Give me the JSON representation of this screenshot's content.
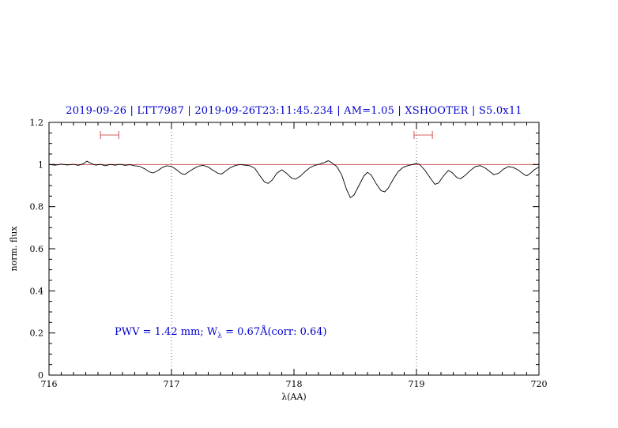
{
  "title": "2019-09-26 | LTT7987 | 2019-09-26T23:11:45.234 | AM=1.05 | XSHOOTER | S5.0x11",
  "colors": {
    "title": "#0000cc",
    "annotation": "#0000cc",
    "spectrum": "#000000",
    "continuum": "#c84040",
    "marker": "#d96060",
    "vline": "#444444",
    "frame": "#000000"
  },
  "chart_data": {
    "type": "line",
    "title": "2019-09-26 | LTT7987 | 2019-09-26T23:11:45.234 | AM=1.05 | XSHOOTER | S5.0x11",
    "xlabel": "λ(AA)",
    "ylabel": "norm. flux",
    "xlim": [
      716,
      720
    ],
    "ylim": [
      0,
      1.2
    ],
    "x_ticks": [
      716,
      717,
      718,
      719,
      720
    ],
    "x_tick_labels": [
      "716",
      "717",
      "718",
      "719",
      "720"
    ],
    "y_ticks": [
      0,
      0.2,
      0.4,
      0.6,
      0.8,
      1,
      1.2
    ],
    "y_tick_labels": [
      "0",
      "0.2",
      "0.4",
      "0.6",
      "0.8",
      "1",
      "1.2"
    ],
    "x_minor_step": 0.1,
    "y_minor_step": 0.05,
    "grid": false,
    "legend": "none",
    "vlines": [
      717,
      719
    ],
    "continuum_y": 1.0,
    "range_markers": [
      {
        "x1": 716.42,
        "x2": 716.57,
        "y": 1.14
      },
      {
        "x1": 718.98,
        "x2": 719.13,
        "y": 1.14
      }
    ],
    "annotation": {
      "pre": "PWV = 1.42 mm; W",
      "sub": "λ",
      "post": " = 0.67Å(corr: 0.64)",
      "x": 716.55,
      "y": 0.2
    },
    "series": [
      {
        "name": "normalized-spectrum",
        "points": [
          [
            716.0,
            1.0
          ],
          [
            716.05,
            0.997
          ],
          [
            716.1,
            1.002
          ],
          [
            716.15,
            0.998
          ],
          [
            716.2,
            1.001
          ],
          [
            716.24,
            0.996
          ],
          [
            716.28,
            1.004
          ],
          [
            716.31,
            1.016
          ],
          [
            716.34,
            1.006
          ],
          [
            716.38,
            0.997
          ],
          [
            716.42,
            1.001
          ],
          [
            716.46,
            0.994
          ],
          [
            716.5,
            1.0
          ],
          [
            716.54,
            0.997
          ],
          [
            716.58,
            1.001
          ],
          [
            716.62,
            0.996
          ],
          [
            716.66,
            0.999
          ],
          [
            716.7,
            0.994
          ],
          [
            716.74,
            0.991
          ],
          [
            716.78,
            0.98
          ],
          [
            716.82,
            0.965
          ],
          [
            716.85,
            0.96
          ],
          [
            716.88,
            0.968
          ],
          [
            716.92,
            0.984
          ],
          [
            716.96,
            0.994
          ],
          [
            717.0,
            0.991
          ],
          [
            717.04,
            0.976
          ],
          [
            717.08,
            0.957
          ],
          [
            717.11,
            0.953
          ],
          [
            717.14,
            0.965
          ],
          [
            717.18,
            0.98
          ],
          [
            717.22,
            0.992
          ],
          [
            717.26,
            0.996
          ],
          [
            717.3,
            0.988
          ],
          [
            717.34,
            0.972
          ],
          [
            717.38,
            0.958
          ],
          [
            717.41,
            0.955
          ],
          [
            717.44,
            0.968
          ],
          [
            717.48,
            0.985
          ],
          [
            717.52,
            0.995
          ],
          [
            717.56,
            1.0
          ],
          [
            717.6,
            0.997
          ],
          [
            717.64,
            0.994
          ],
          [
            717.68,
            0.982
          ],
          [
            717.72,
            0.948
          ],
          [
            717.76,
            0.917
          ],
          [
            717.79,
            0.91
          ],
          [
            717.82,
            0.925
          ],
          [
            717.86,
            0.958
          ],
          [
            717.9,
            0.975
          ],
          [
            717.94,
            0.958
          ],
          [
            717.98,
            0.936
          ],
          [
            718.01,
            0.93
          ],
          [
            718.05,
            0.944
          ],
          [
            718.09,
            0.966
          ],
          [
            718.13,
            0.985
          ],
          [
            718.17,
            0.996
          ],
          [
            718.21,
            1.002
          ],
          [
            718.25,
            1.01
          ],
          [
            718.28,
            1.018
          ],
          [
            718.31,
            1.008
          ],
          [
            718.35,
            0.99
          ],
          [
            718.39,
            0.95
          ],
          [
            718.43,
            0.88
          ],
          [
            718.46,
            0.843
          ],
          [
            718.49,
            0.855
          ],
          [
            718.53,
            0.9
          ],
          [
            718.57,
            0.945
          ],
          [
            718.6,
            0.963
          ],
          [
            718.63,
            0.95
          ],
          [
            718.67,
            0.91
          ],
          [
            718.71,
            0.876
          ],
          [
            718.74,
            0.87
          ],
          [
            718.77,
            0.888
          ],
          [
            718.81,
            0.93
          ],
          [
            718.85,
            0.966
          ],
          [
            718.89,
            0.986
          ],
          [
            718.93,
            0.995
          ],
          [
            718.97,
            1.0
          ],
          [
            719.0,
            1.006
          ],
          [
            719.03,
            0.998
          ],
          [
            719.07,
            0.972
          ],
          [
            719.11,
            0.938
          ],
          [
            719.15,
            0.906
          ],
          [
            719.18,
            0.912
          ],
          [
            719.22,
            0.945
          ],
          [
            719.26,
            0.972
          ],
          [
            719.29,
            0.962
          ],
          [
            719.33,
            0.938
          ],
          [
            719.36,
            0.932
          ],
          [
            719.4,
            0.95
          ],
          [
            719.44,
            0.972
          ],
          [
            719.48,
            0.99
          ],
          [
            719.52,
            0.995
          ],
          [
            719.56,
            0.984
          ],
          [
            719.6,
            0.966
          ],
          [
            719.63,
            0.952
          ],
          [
            719.67,
            0.958
          ],
          [
            719.71,
            0.978
          ],
          [
            719.75,
            0.99
          ],
          [
            719.79,
            0.986
          ],
          [
            719.83,
            0.974
          ],
          [
            719.87,
            0.956
          ],
          [
            719.9,
            0.946
          ],
          [
            719.93,
            0.958
          ],
          [
            719.96,
            0.975
          ],
          [
            720.0,
            0.988
          ]
        ]
      }
    ]
  }
}
